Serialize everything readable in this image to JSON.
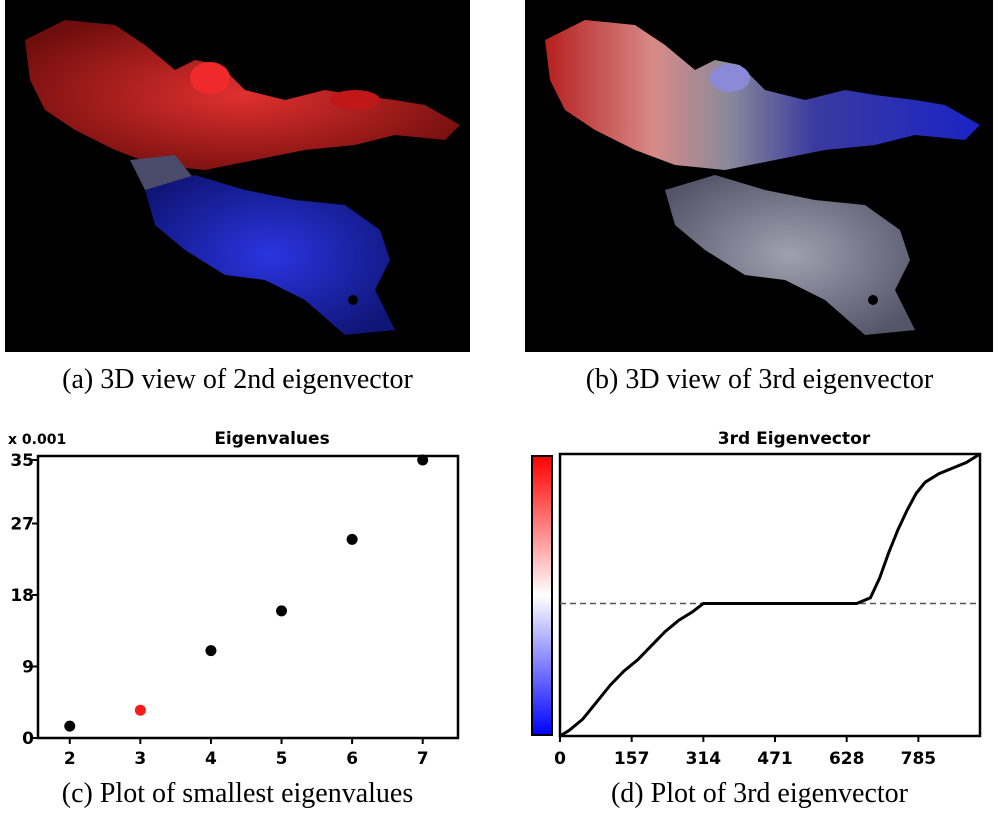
{
  "captions": {
    "a": "(a) 3D view of 2nd eigenvector",
    "b": "(b) 3D view of 3rd eigenvector",
    "c": "(c) Plot of smallest eigenvalues",
    "d": "(d) Plot of 3rd eigenvector"
  },
  "colors": {
    "red": "#e0191f",
    "blue": "#1a23d6",
    "black": "#000000",
    "highlight": "#ff1a1a",
    "dashed": "#555555"
  },
  "chart_data": [
    {
      "type": "scatter",
      "title": "Eigenvalues",
      "scale_label": "x 0.001",
      "xlabel": "",
      "ylabel": "",
      "x": [
        2,
        3,
        4,
        5,
        6,
        7
      ],
      "y": [
        1.5,
        3.5,
        11,
        16,
        25,
        35
      ],
      "highlight_index": 1,
      "xlim": [
        1.55,
        7.5
      ],
      "ylim": [
        0,
        35.5
      ],
      "xticks": [
        2,
        3,
        4,
        5,
        6,
        7
      ],
      "yticks": [
        0,
        9,
        18,
        27,
        35
      ],
      "grid": false
    },
    {
      "type": "line",
      "title": "3rd Eigenvector",
      "xlabel": "",
      "ylabel": "",
      "xticks": [
        0,
        157,
        314,
        471,
        628,
        785
      ],
      "xlim": [
        0,
        920
      ],
      "ylim": [
        0,
        1
      ],
      "reference_line_y": 0.47,
      "colorbar": [
        "blue",
        "white",
        "red"
      ],
      "x": [
        0,
        20,
        50,
        80,
        110,
        140,
        170,
        200,
        230,
        260,
        290,
        314,
        350,
        400,
        450,
        500,
        550,
        600,
        650,
        680,
        700,
        720,
        740,
        760,
        780,
        800,
        830,
        860,
        890,
        920
      ],
      "y": [
        0.0,
        0.02,
        0.06,
        0.12,
        0.18,
        0.23,
        0.27,
        0.32,
        0.37,
        0.41,
        0.44,
        0.47,
        0.47,
        0.47,
        0.47,
        0.47,
        0.47,
        0.47,
        0.47,
        0.49,
        0.56,
        0.65,
        0.73,
        0.8,
        0.86,
        0.9,
        0.93,
        0.95,
        0.97,
        1.0
      ],
      "grid": false
    }
  ]
}
